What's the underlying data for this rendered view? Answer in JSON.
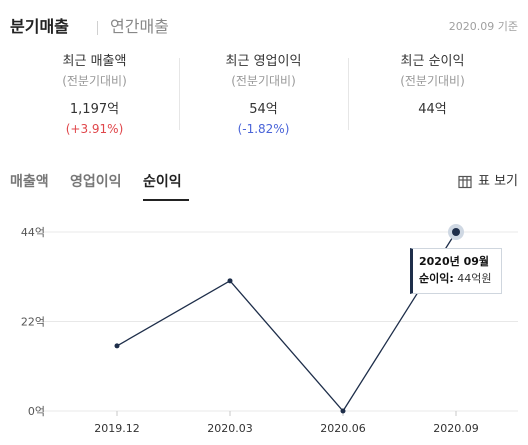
{
  "header": {
    "active_tab": "분기매출",
    "inactive_tab": "연간매출",
    "basis_date": "2020.09 기준"
  },
  "metrics": [
    {
      "title": "최근 매출액",
      "subtitle": "(전분기대비)",
      "value": "1,197억",
      "change": "(+3.91%)"
    },
    {
      "title": "최근 영업이익",
      "subtitle": "(전분기대비)",
      "value": "54억",
      "change": "(-1.82%)"
    },
    {
      "title": "최근 순이익",
      "subtitle": "(전분기대비)",
      "value": "44억",
      "change": ""
    }
  ],
  "sub_tabs": [
    "매출액",
    "영업이익",
    "순이익"
  ],
  "selected_sub_tab": "순이익",
  "table_view_label": "표 보기",
  "colors": {
    "line": "#1e2e4a",
    "up": "#e0464a",
    "down": "#4a64d8",
    "gridline": "#e8e8e8"
  },
  "icons": {
    "table_view": "table-icon"
  },
  "chart_data": {
    "type": "line",
    "categories": [
      "2019.12",
      "2020.03",
      "2020.06",
      "2020.09"
    ],
    "series": [
      {
        "values": [
          16,
          32,
          0,
          44
        ]
      }
    ],
    "yticks": [
      "0억",
      "22억",
      "44억"
    ],
    "ylim": [
      0,
      44
    ],
    "grid": true,
    "highlighted_index": 3,
    "tooltip": {
      "title": "2020년 09월",
      "label": "순이익:",
      "value": "44억원"
    }
  }
}
